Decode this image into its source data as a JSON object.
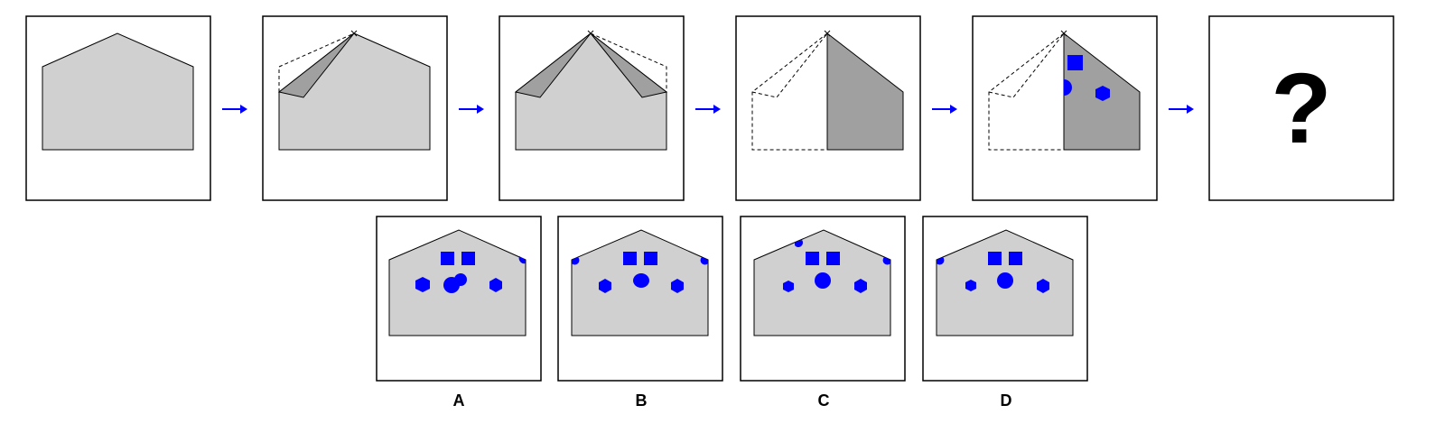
{
  "colors": {
    "paper": "#d0d0d0",
    "folded": "#a0a0a0",
    "hole": "#0000ff",
    "arrow": "#0000ff",
    "outline": "#000000"
  },
  "question_mark": "?",
  "options": [
    {
      "label": "A"
    },
    {
      "label": "B"
    },
    {
      "label": "C"
    },
    {
      "label": "D"
    }
  ]
}
